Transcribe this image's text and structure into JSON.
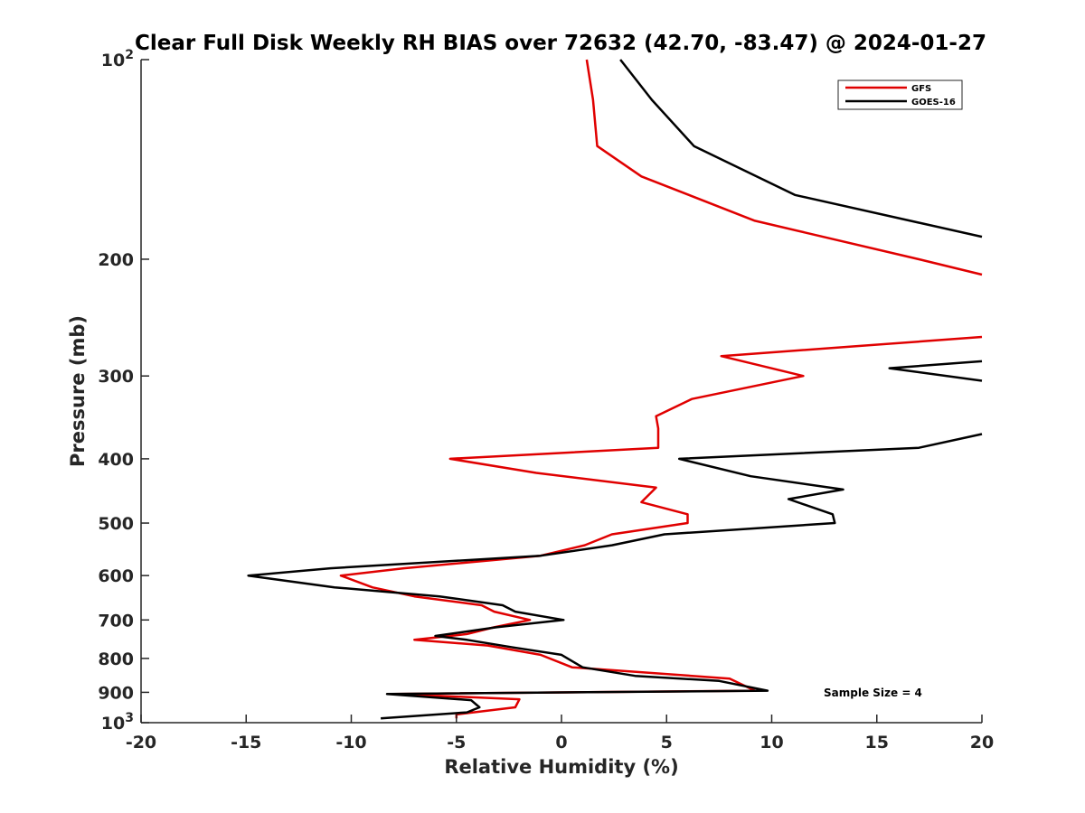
{
  "chart_data": {
    "type": "line",
    "title": "Clear Full Disk Weekly RH BIAS over 72632 (42.70, -83.47) @ 2024-01-27",
    "xlabel": "Relative Humidity (%)",
    "ylabel": "Pressure (mb)",
    "xlim": [
      -20,
      20
    ],
    "ylim": [
      100,
      1000
    ],
    "y_scale": "log",
    "y_reversed": true,
    "grid": false,
    "legend_position": "top-right",
    "x_ticks": [
      "-20",
      "-15",
      "-10",
      "-5",
      "0",
      "5",
      "10",
      "15",
      "20"
    ],
    "y_ticks": [
      {
        "value": 100,
        "base": "10",
        "exp": "2"
      },
      {
        "value": 200,
        "label": "200"
      },
      {
        "value": 300,
        "label": "300"
      },
      {
        "value": 400,
        "label": "400"
      },
      {
        "value": 500,
        "label": "500"
      },
      {
        "value": 600,
        "label": "600"
      },
      {
        "value": 700,
        "label": "700"
      },
      {
        "value": 800,
        "label": "800"
      },
      {
        "value": 900,
        "label": "900"
      },
      {
        "value": 1000,
        "base": "10",
        "exp": "3"
      }
    ],
    "annotation": "Sample Size = 4",
    "series": [
      {
        "name": "GFS",
        "color": "#e00000",
        "points": [
          [
            1.2,
            100
          ],
          [
            1.5,
            115
          ],
          [
            1.7,
            135
          ],
          [
            3.8,
            150
          ],
          [
            9.2,
            175
          ],
          [
            17,
            200
          ],
          [
            20,
            211
          ],
          [
            null,
            null
          ],
          [
            20,
            262
          ],
          [
            7.6,
            280
          ],
          [
            11.5,
            300
          ],
          [
            6.2,
            325
          ],
          [
            4.5,
            345
          ],
          [
            4.6,
            360
          ],
          [
            4.6,
            385
          ],
          [
            -5.3,
            400
          ],
          [
            -1.2,
            420
          ],
          [
            4.5,
            442
          ],
          [
            3.8,
            465
          ],
          [
            6.0,
            485
          ],
          [
            6.0,
            500
          ],
          [
            2.4,
            520
          ],
          [
            1.1,
            540
          ],
          [
            -1.0,
            560
          ],
          [
            -7.5,
            585
          ],
          [
            -10.5,
            600
          ],
          [
            -9,
            625
          ],
          [
            -7,
            645
          ],
          [
            -3.8,
            665
          ],
          [
            -3.2,
            680
          ],
          [
            -1.5,
            700
          ],
          [
            -3.2,
            718
          ],
          [
            -4.5,
            735
          ],
          [
            -7.0,
            750
          ],
          [
            -3.5,
            765
          ],
          [
            -1.0,
            790
          ],
          [
            0.5,
            825
          ],
          [
            8.0,
            858
          ],
          [
            9.2,
            895
          ],
          [
            -8.0,
            905
          ],
          [
            -2.0,
            922
          ],
          [
            -2.2,
            948
          ],
          [
            -5.0,
            972
          ],
          [
            -5.0,
            985
          ]
        ]
      },
      {
        "name": "GOES-16",
        "color": "#000000",
        "points": [
          [
            2.8,
            100
          ],
          [
            4.3,
            115
          ],
          [
            6.3,
            135
          ],
          [
            11.1,
            160
          ],
          [
            20,
            185
          ],
          [
            null,
            null
          ],
          [
            20,
            285
          ],
          [
            15.6,
            292
          ],
          [
            20,
            305
          ],
          [
            null,
            null
          ],
          [
            20,
            367
          ],
          [
            17,
            385
          ],
          [
            5.6,
            400
          ],
          [
            9,
            425
          ],
          [
            13.4,
            445
          ],
          [
            10.8,
            460
          ],
          [
            12.9,
            485
          ],
          [
            13.0,
            500
          ],
          [
            4.9,
            520
          ],
          [
            2.4,
            540
          ],
          [
            -1.0,
            560
          ],
          [
            -11,
            585
          ],
          [
            -14.9,
            600
          ],
          [
            -10.8,
            625
          ],
          [
            -5.8,
            645
          ],
          [
            -2.8,
            665
          ],
          [
            -2.2,
            680
          ],
          [
            0.1,
            700
          ],
          [
            -3.1,
            718
          ],
          [
            -6.0,
            740
          ],
          [
            -4.5,
            750
          ],
          [
            -2.3,
            770
          ],
          [
            0.0,
            790
          ],
          [
            1.0,
            825
          ],
          [
            3.5,
            850
          ],
          [
            7.5,
            865
          ],
          [
            9.8,
            895
          ],
          [
            -8.3,
            905
          ],
          [
            -4.3,
            925
          ],
          [
            -3.9,
            948
          ],
          [
            -4.5,
            965
          ],
          [
            -8.6,
            985
          ]
        ]
      }
    ]
  }
}
